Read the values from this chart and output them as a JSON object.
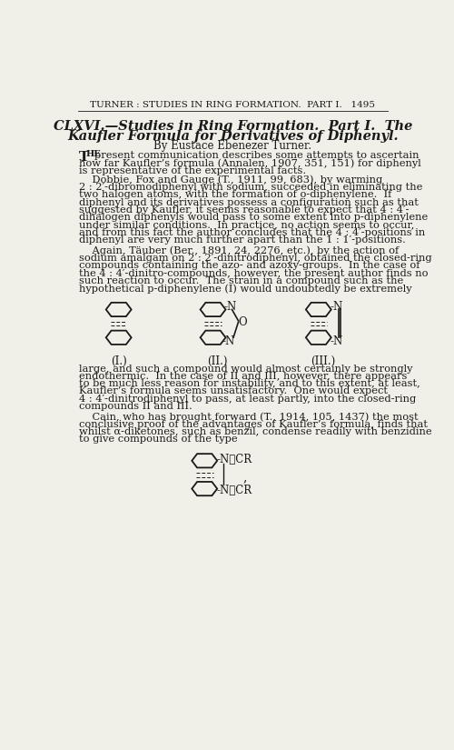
{
  "header": "TURNER : STUDIES IN RING FORMATION.  PART I.   1495",
  "title_line1": "CLXVI.—Studies in Ring Formation.  Part I.  The",
  "title_line2": "Kaufler Formula for Derivatives of Diphenyl.",
  "author": "By Eustace Ebenezer Turner.",
  "bg_color": "#f0efe8",
  "text_color": "#1a1a1a",
  "para2_lines": [
    "    Dobbie, Fox and Gauge (T., 1911, 99, 683), by warming",
    "2 : 2′-dibromodiphenyl with sodium, succeeded in eliminating the",
    "two halogen atoms, with the formation of o-diphenylene.  If",
    "diphenyl and its derivatives possess a configuration such as that",
    "suggested by Kaufler, it seems reasonable to expect that 4 : 4′-",
    "dihalogen diphenyls would pass to some extent into p-diphenylene",
    "under similar conditions.  In practice, no action seems to occur,",
    "and from this fact the author concludes that the 4 : 4′-positions in",
    "diphenyl are very much further apart than the 1 : 1′-positions."
  ],
  "para3_lines": [
    "    Again, Täuber (Ber., 1891, 24, 2276, etc.), by the action of",
    "sodium amalgam on 2 : 2′-dinitrodiphenyl, obtained the closed-ring",
    "compounds containing the azo- and azoxy-groups.  In the case of",
    "the 4 : 4′-dinitro-compounds, however, the present author finds no",
    "such reaction to occur.  The strain in a compound such as the",
    "hypothetical p-diphenylene (I) would undoubtedly be extremely"
  ],
  "para4_lines": [
    "large, and such a compound would almost certainly be strongly",
    "endothermic.  In the case of II and III, however, there appears",
    "to be much less reason for instability, and to this extent, at least,",
    "Kaufler’s formula seems unsatisfactory.  One would expect",
    "4 : 4′-dinitrodiphenyl to pass, at least partly, into the closed-ring",
    "compounds II and III."
  ],
  "para5_lines": [
    "    Cain, who has brought forward (T., 1914, 105, 1437) the most",
    "conclusive proof of the advantages of Kaufler’s formula, finds that",
    "whilst α-diketones, such as benzil, condense readily with benzidine",
    "to give compounds of the type"
  ]
}
